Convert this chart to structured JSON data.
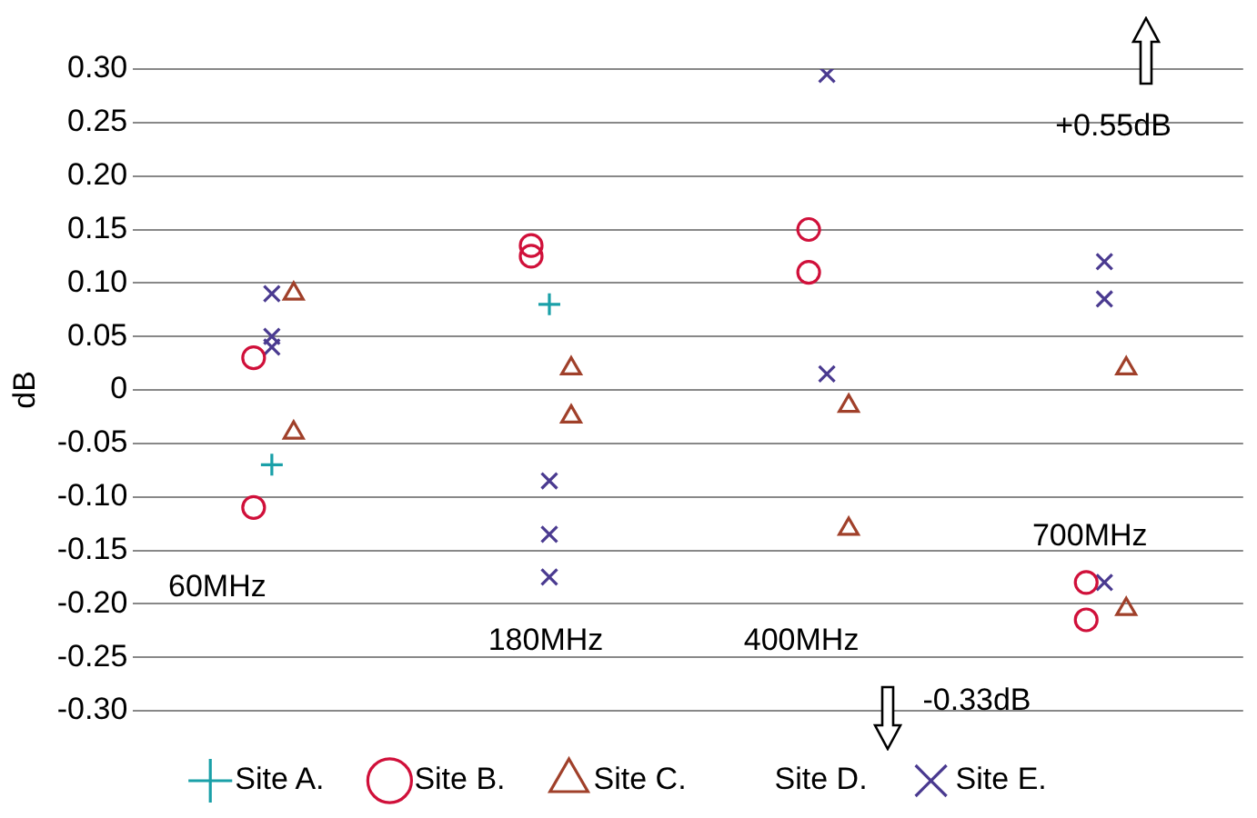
{
  "chart_data": {
    "type": "scatter",
    "ylabel": "dB",
    "ylim": [
      -0.3,
      0.3
    ],
    "categories": [
      null,
      null,
      null,
      null
    ],
    "yticks": [
      {
        "value": 0.3,
        "label": "0.30"
      },
      {
        "value": 0.25,
        "label": "0.25"
      },
      {
        "value": 0.2,
        "label": "0.20"
      },
      {
        "value": 0.15,
        "label": "0.15"
      },
      {
        "value": 0.1,
        "label": "0.10"
      },
      {
        "value": 0.05,
        "label": "0.05"
      },
      {
        "value": 0,
        "label": "0"
      },
      {
        "value": -0.05,
        "label": "-0.05"
      },
      {
        "value": -0.1,
        "label": "-0.10"
      },
      {
        "value": -0.15,
        "label": "-0.15"
      },
      {
        "value": -0.2,
        "label": "-0.20"
      },
      {
        "value": -0.25,
        "label": "-0.25"
      },
      {
        "value": -0.3,
        "label": "-0.30"
      }
    ],
    "grid": "y",
    "legend": "bottom",
    "tick_labels": "y",
    "series": [
      {
        "name": "Site A.",
        "color": "#1aa0a8",
        "marker": "cross",
        "values": [
          -0.07,
          0.08,
          null,
          null
        ]
      },
      {
        "name": "Site B.",
        "color": "#d0103a",
        "marker": "circle",
        "values": [
          0.03,
          0.125,
          0.15,
          -0.18
        ]
      },
      {
        "color": "#d0103a",
        "marker": "circle",
        "values": [
          -0.11,
          0.135,
          0.11,
          -0.215
        ]
      },
      {
        "name": "Site C.",
        "color": "#a0402a",
        "marker": "triangle",
        "values": [
          0.09,
          0.02,
          -0.015,
          0.02
        ]
      },
      {
        "color": "#a0402a",
        "marker": "triangle",
        "values": [
          -0.04,
          -0.025,
          -0.13,
          -0.205
        ]
      },
      {
        "name": "Site E.",
        "color": "#4a3a90",
        "marker": "x",
        "values": [
          0.09,
          -0.085,
          0.295,
          0.12
        ]
      },
      {
        "color": "#4a3a90",
        "marker": "x",
        "values": [
          0.05,
          -0.135,
          0.015,
          0.085
        ]
      },
      {
        "color": "#4a3a90",
        "marker": "x",
        "values": [
          0.04,
          -0.175,
          null,
          -0.18
        ]
      }
    ],
    "annotations": [
      "60MHz",
      "180MHz",
      "400MHz",
      "700MHz",
      "+0.55dB",
      "-0.33dB",
      "Site D."
    ]
  }
}
